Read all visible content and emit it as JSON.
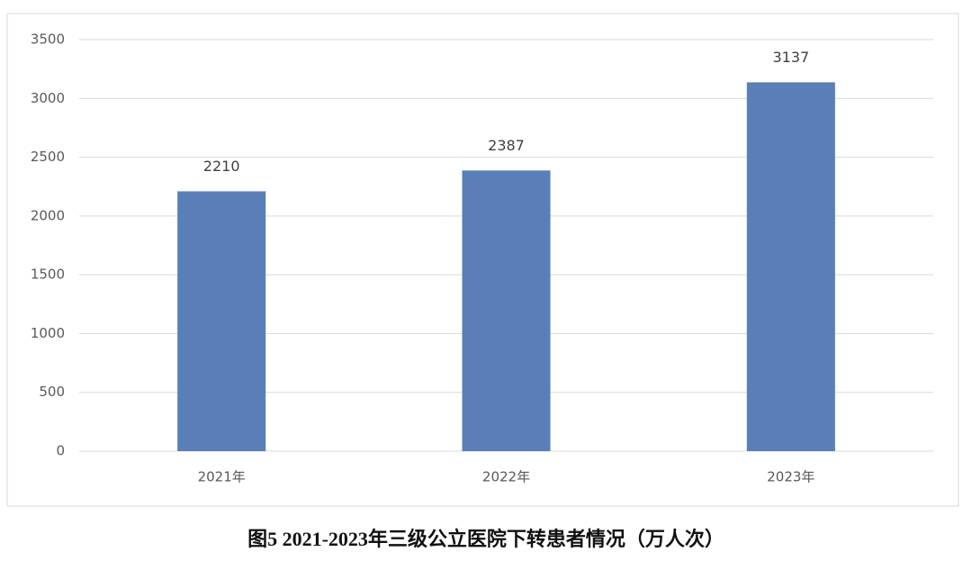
{
  "chart_data": {
    "type": "bar",
    "title": "图5  2021-2023年三级公立医院下转患者情况（万人次）",
    "categories": [
      "2021年",
      "2022年",
      "2023年"
    ],
    "values": [
      2210,
      2387,
      3137
    ],
    "color": "#5a7fb8",
    "ylim": [
      0,
      3500
    ],
    "yticks": [
      0,
      500,
      1000,
      1500,
      2000,
      2500,
      3000,
      3500
    ],
    "grid": true
  }
}
